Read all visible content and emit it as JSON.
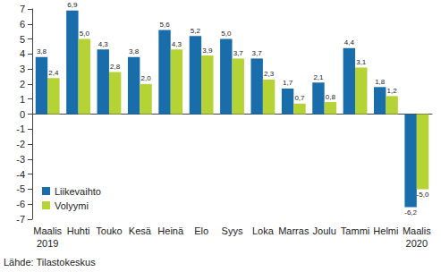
{
  "chart_data": {
    "type": "bar",
    "categories": [
      "Maalis\n2019",
      "Huhti",
      "Touko",
      "Kesä",
      "Heinä",
      "Elo",
      "Syys",
      "Loka",
      "Marras",
      "Joulu",
      "Tammi",
      "Helmi",
      "Maalis\n2020"
    ],
    "series": [
      {
        "name": "Liikevaihto",
        "color": "#1a6dab",
        "values": [
          3.8,
          6.9,
          4.3,
          3.8,
          5.6,
          5.2,
          5.0,
          3.7,
          1.7,
          2.1,
          4.4,
          1.8,
          -6.2
        ],
        "value_labels": [
          "3,8",
          "6,9",
          "4,3",
          "3,8",
          "5,6",
          "5,2",
          "5,0",
          "3,7",
          "1,7",
          "2,1",
          "4,4",
          "1,8",
          "-6,2"
        ]
      },
      {
        "name": "Volyymi",
        "color": "#b5d334",
        "values": [
          2.4,
          5.0,
          2.8,
          2.0,
          4.3,
          3.9,
          3.7,
          2.3,
          0.7,
          0.8,
          3.1,
          1.2,
          -5.0
        ],
        "value_labels": [
          "2,4",
          "5,0",
          "2,8",
          "2,0",
          "4,3",
          "3,9",
          "3,7",
          "2,3",
          "0,7",
          "0,8",
          "3,1",
          "1,2",
          "-5,0"
        ]
      }
    ],
    "ylim": [
      -7,
      7
    ],
    "yticks": [
      -7,
      -6,
      -5,
      -4,
      -3,
      -2,
      -1,
      0,
      1,
      2,
      3,
      4,
      5,
      6,
      7
    ],
    "grid": false,
    "legend": "bottom-left",
    "data_labels": true,
    "source": "Lähde: Tilastokeskus"
  }
}
